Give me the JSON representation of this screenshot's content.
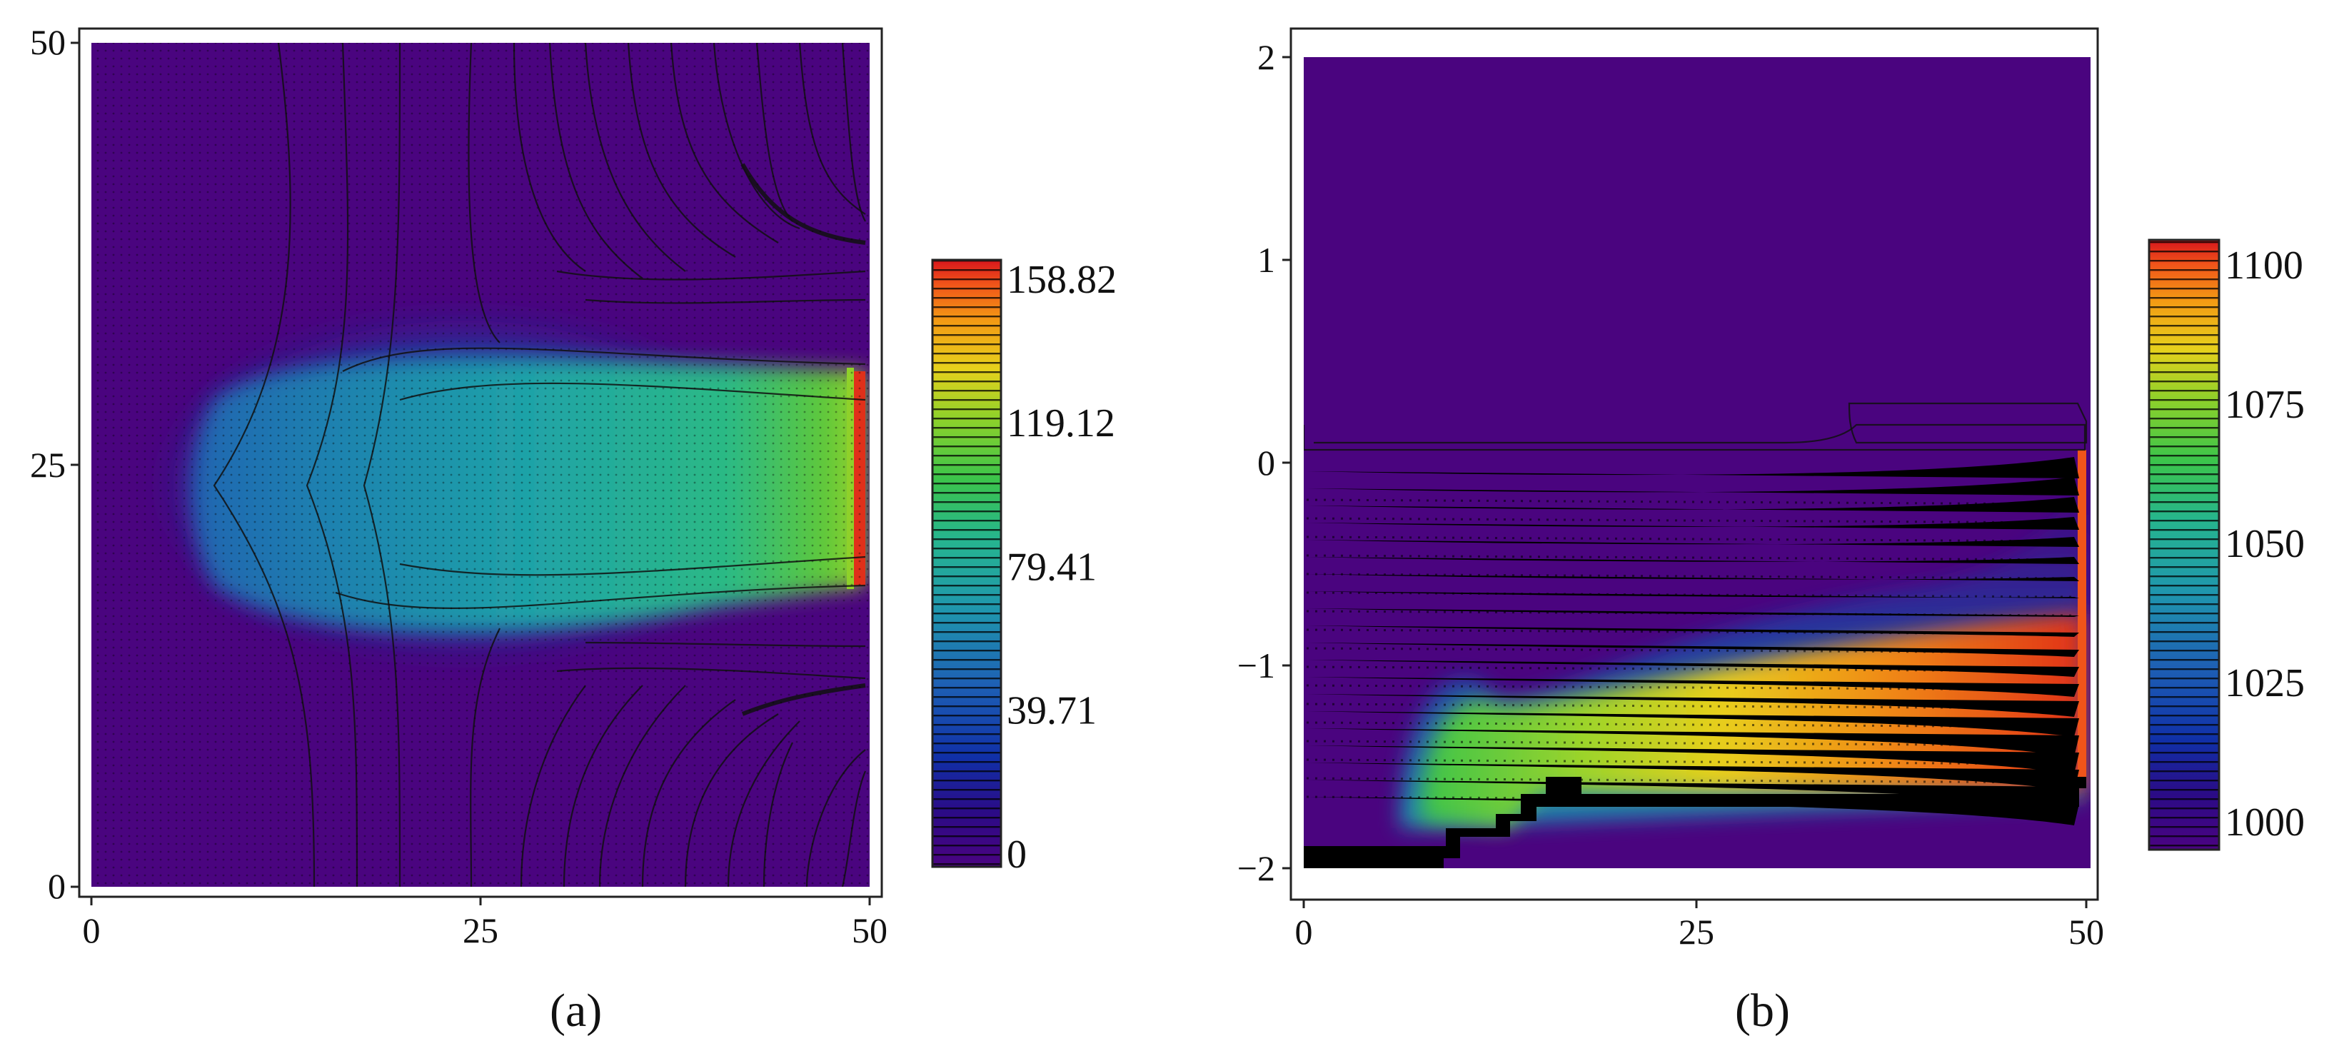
{
  "chart_data": [
    {
      "type": "heatmap",
      "panel_label": "(a)",
      "xlim": [
        0,
        50
      ],
      "ylim": [
        0,
        50
      ],
      "x_ticks": [
        "0",
        "25",
        "50"
      ],
      "y_ticks": [
        "0",
        "25",
        "50"
      ],
      "colorbar": {
        "range": [
          0,
          158.82
        ],
        "tick_labels": [
          "158.82",
          "119.12",
          "79.41",
          "39.71",
          "0"
        ],
        "tick_values": [
          158.82,
          119.12,
          79.41,
          39.71,
          0
        ]
      },
      "overlays": [
        "contour lines",
        "velocity vectors"
      ],
      "grid": false
    },
    {
      "type": "heatmap",
      "panel_label": "(b)",
      "xlim": [
        0,
        50
      ],
      "ylim": [
        -2,
        2
      ],
      "x_ticks": [
        "0",
        "25",
        "50"
      ],
      "y_ticks": [
        "2",
        "1",
        "0",
        "−1",
        "−2"
      ],
      "colorbar": {
        "range": [
          1000,
          1100
        ],
        "tick_labels": [
          "1100",
          "1075",
          "1050",
          "1025",
          "1000"
        ],
        "tick_values": [
          1100,
          1075,
          1050,
          1025,
          1000
        ]
      },
      "overlays": [
        "contour lines",
        "velocity vectors"
      ],
      "grid": false
    }
  ],
  "colors": {
    "background_field": "#4a047f",
    "colormap": [
      "#4b0381",
      "#2b0b86",
      "#1030a8",
      "#1e60b4",
      "#1f95ae",
      "#26b58e",
      "#3cc44a",
      "#8fd12a",
      "#e6d11c",
      "#f39a14",
      "#f0541a",
      "#d8161c"
    ]
  }
}
